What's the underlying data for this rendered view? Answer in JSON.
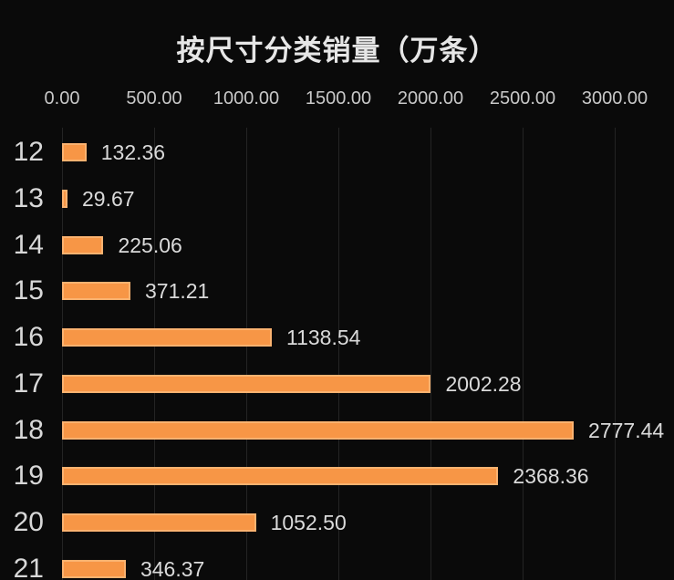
{
  "chart_data": {
    "type": "bar",
    "orientation": "horizontal",
    "title": "按尺寸分类销量（万条）",
    "categories": [
      "12",
      "13",
      "14",
      "15",
      "16",
      "17",
      "18",
      "19",
      "20",
      "21"
    ],
    "values": [
      132.36,
      29.67,
      225.06,
      371.21,
      1138.54,
      2002.28,
      2777.44,
      2368.36,
      1052.5,
      346.37
    ],
    "value_labels": [
      "132.36",
      "29.67",
      "225.06",
      "371.21",
      "1138.54",
      "2002.28",
      "2777.44",
      "2368.36",
      "1052.50",
      "346.37"
    ],
    "x_ticks": [
      "0.00",
      "500.00",
      "1000.00",
      "1500.00",
      "2000.00",
      "2500.00",
      "3000.00"
    ],
    "x_tick_values": [
      0,
      500,
      1000,
      1500,
      2000,
      2500,
      3000
    ],
    "xlim": [
      0,
      3330
    ],
    "grid": true,
    "legend": "none",
    "colors": {
      "background": "#0a0a0a",
      "bar": "#f79646",
      "bar_edge_highlight": "#fdcb94",
      "grid_line": "#242424",
      "title_text": "#e6e6e6",
      "tick_text": "#c8c8c8",
      "category_text": "#d8d8d8",
      "value_text": "#dadada"
    }
  }
}
